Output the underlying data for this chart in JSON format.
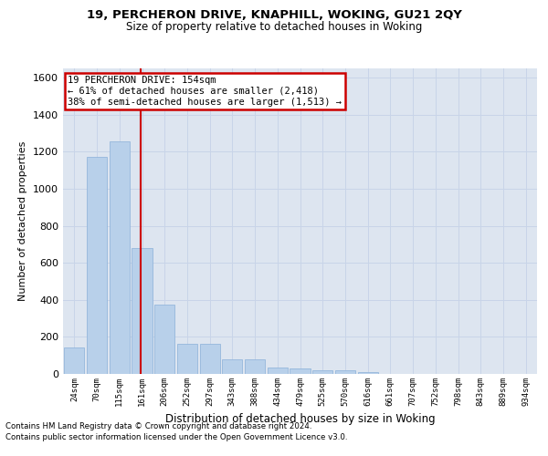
{
  "title": "19, PERCHERON DRIVE, KNAPHILL, WOKING, GU21 2QY",
  "subtitle": "Size of property relative to detached houses in Woking",
  "xlabel": "Distribution of detached houses by size in Woking",
  "ylabel": "Number of detached properties",
  "bar_values": [
    145,
    1170,
    1255,
    680,
    375,
    165,
    165,
    80,
    80,
    35,
    30,
    20,
    20,
    10,
    0,
    0,
    0,
    0,
    0,
    0,
    0
  ],
  "bar_labels": [
    "24sqm",
    "70sqm",
    "115sqm",
    "161sqm",
    "206sqm",
    "252sqm",
    "297sqm",
    "343sqm",
    "388sqm",
    "434sqm",
    "479sqm",
    "525sqm",
    "570sqm",
    "616sqm",
    "661sqm",
    "707sqm",
    "752sqm",
    "798sqm",
    "843sqm",
    "889sqm",
    "934sqm"
  ],
  "bar_color": "#b8d0ea",
  "bar_edge_color": "#8ab0d8",
  "property_line_x": 2.95,
  "annotation_text": "19 PERCHERON DRIVE: 154sqm\n← 61% of detached houses are smaller (2,418)\n38% of semi-detached houses are larger (1,513) →",
  "annotation_box_color": "#ffffff",
  "annotation_box_edge": "#cc0000",
  "vline_color": "#cc0000",
  "ylim": [
    0,
    1650
  ],
  "yticks": [
    0,
    200,
    400,
    600,
    800,
    1000,
    1200,
    1400,
    1600
  ],
  "grid_color": "#c8d4e8",
  "bg_color": "#dde5f0",
  "footer_line1": "Contains HM Land Registry data © Crown copyright and database right 2024.",
  "footer_line2": "Contains public sector information licensed under the Open Government Licence v3.0."
}
